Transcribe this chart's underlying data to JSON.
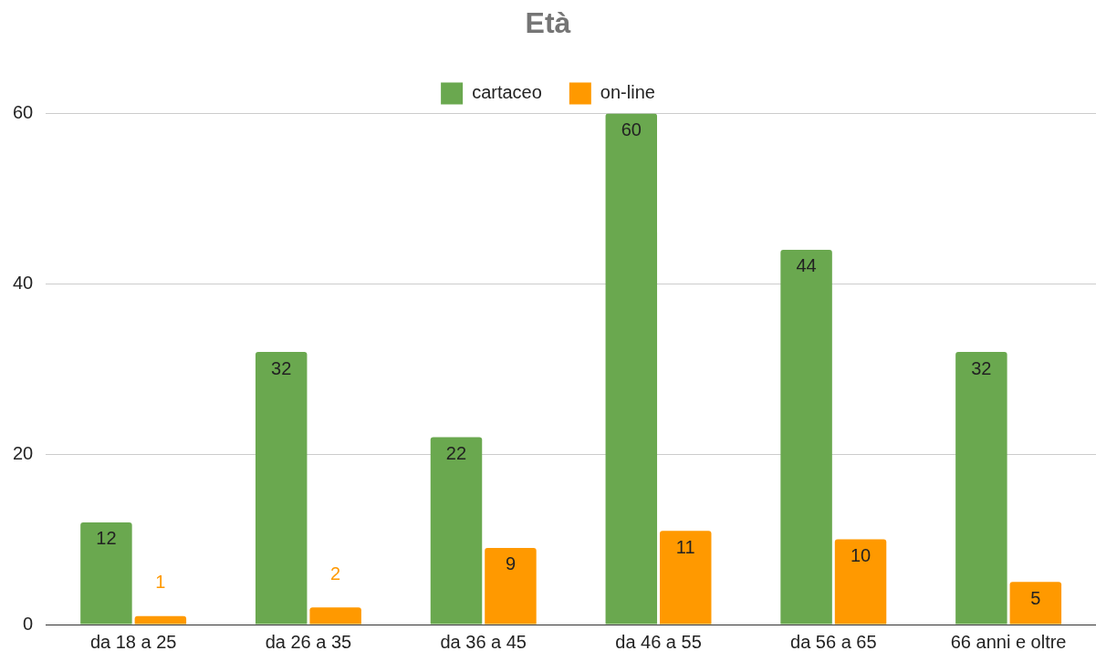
{
  "chart_data": {
    "type": "bar",
    "title": "Età",
    "categories": [
      "da 18 a 25",
      "da 26 a 35",
      "da 36 a 45",
      "da 46 a 55",
      "da 56 a 65",
      "66 anni e oltre"
    ],
    "series": [
      {
        "name": "cartaceo",
        "color": "#6aa84f",
        "values": [
          12,
          32,
          22,
          60,
          44,
          32
        ]
      },
      {
        "name": "on-line",
        "color": "#ff9900",
        "values": [
          1,
          2,
          9,
          11,
          10,
          5
        ]
      }
    ],
    "ylim": [
      0,
      60
    ],
    "yticks": [
      0,
      20,
      40,
      60
    ],
    "grid": "y",
    "legend": "top",
    "data_labels": true
  }
}
